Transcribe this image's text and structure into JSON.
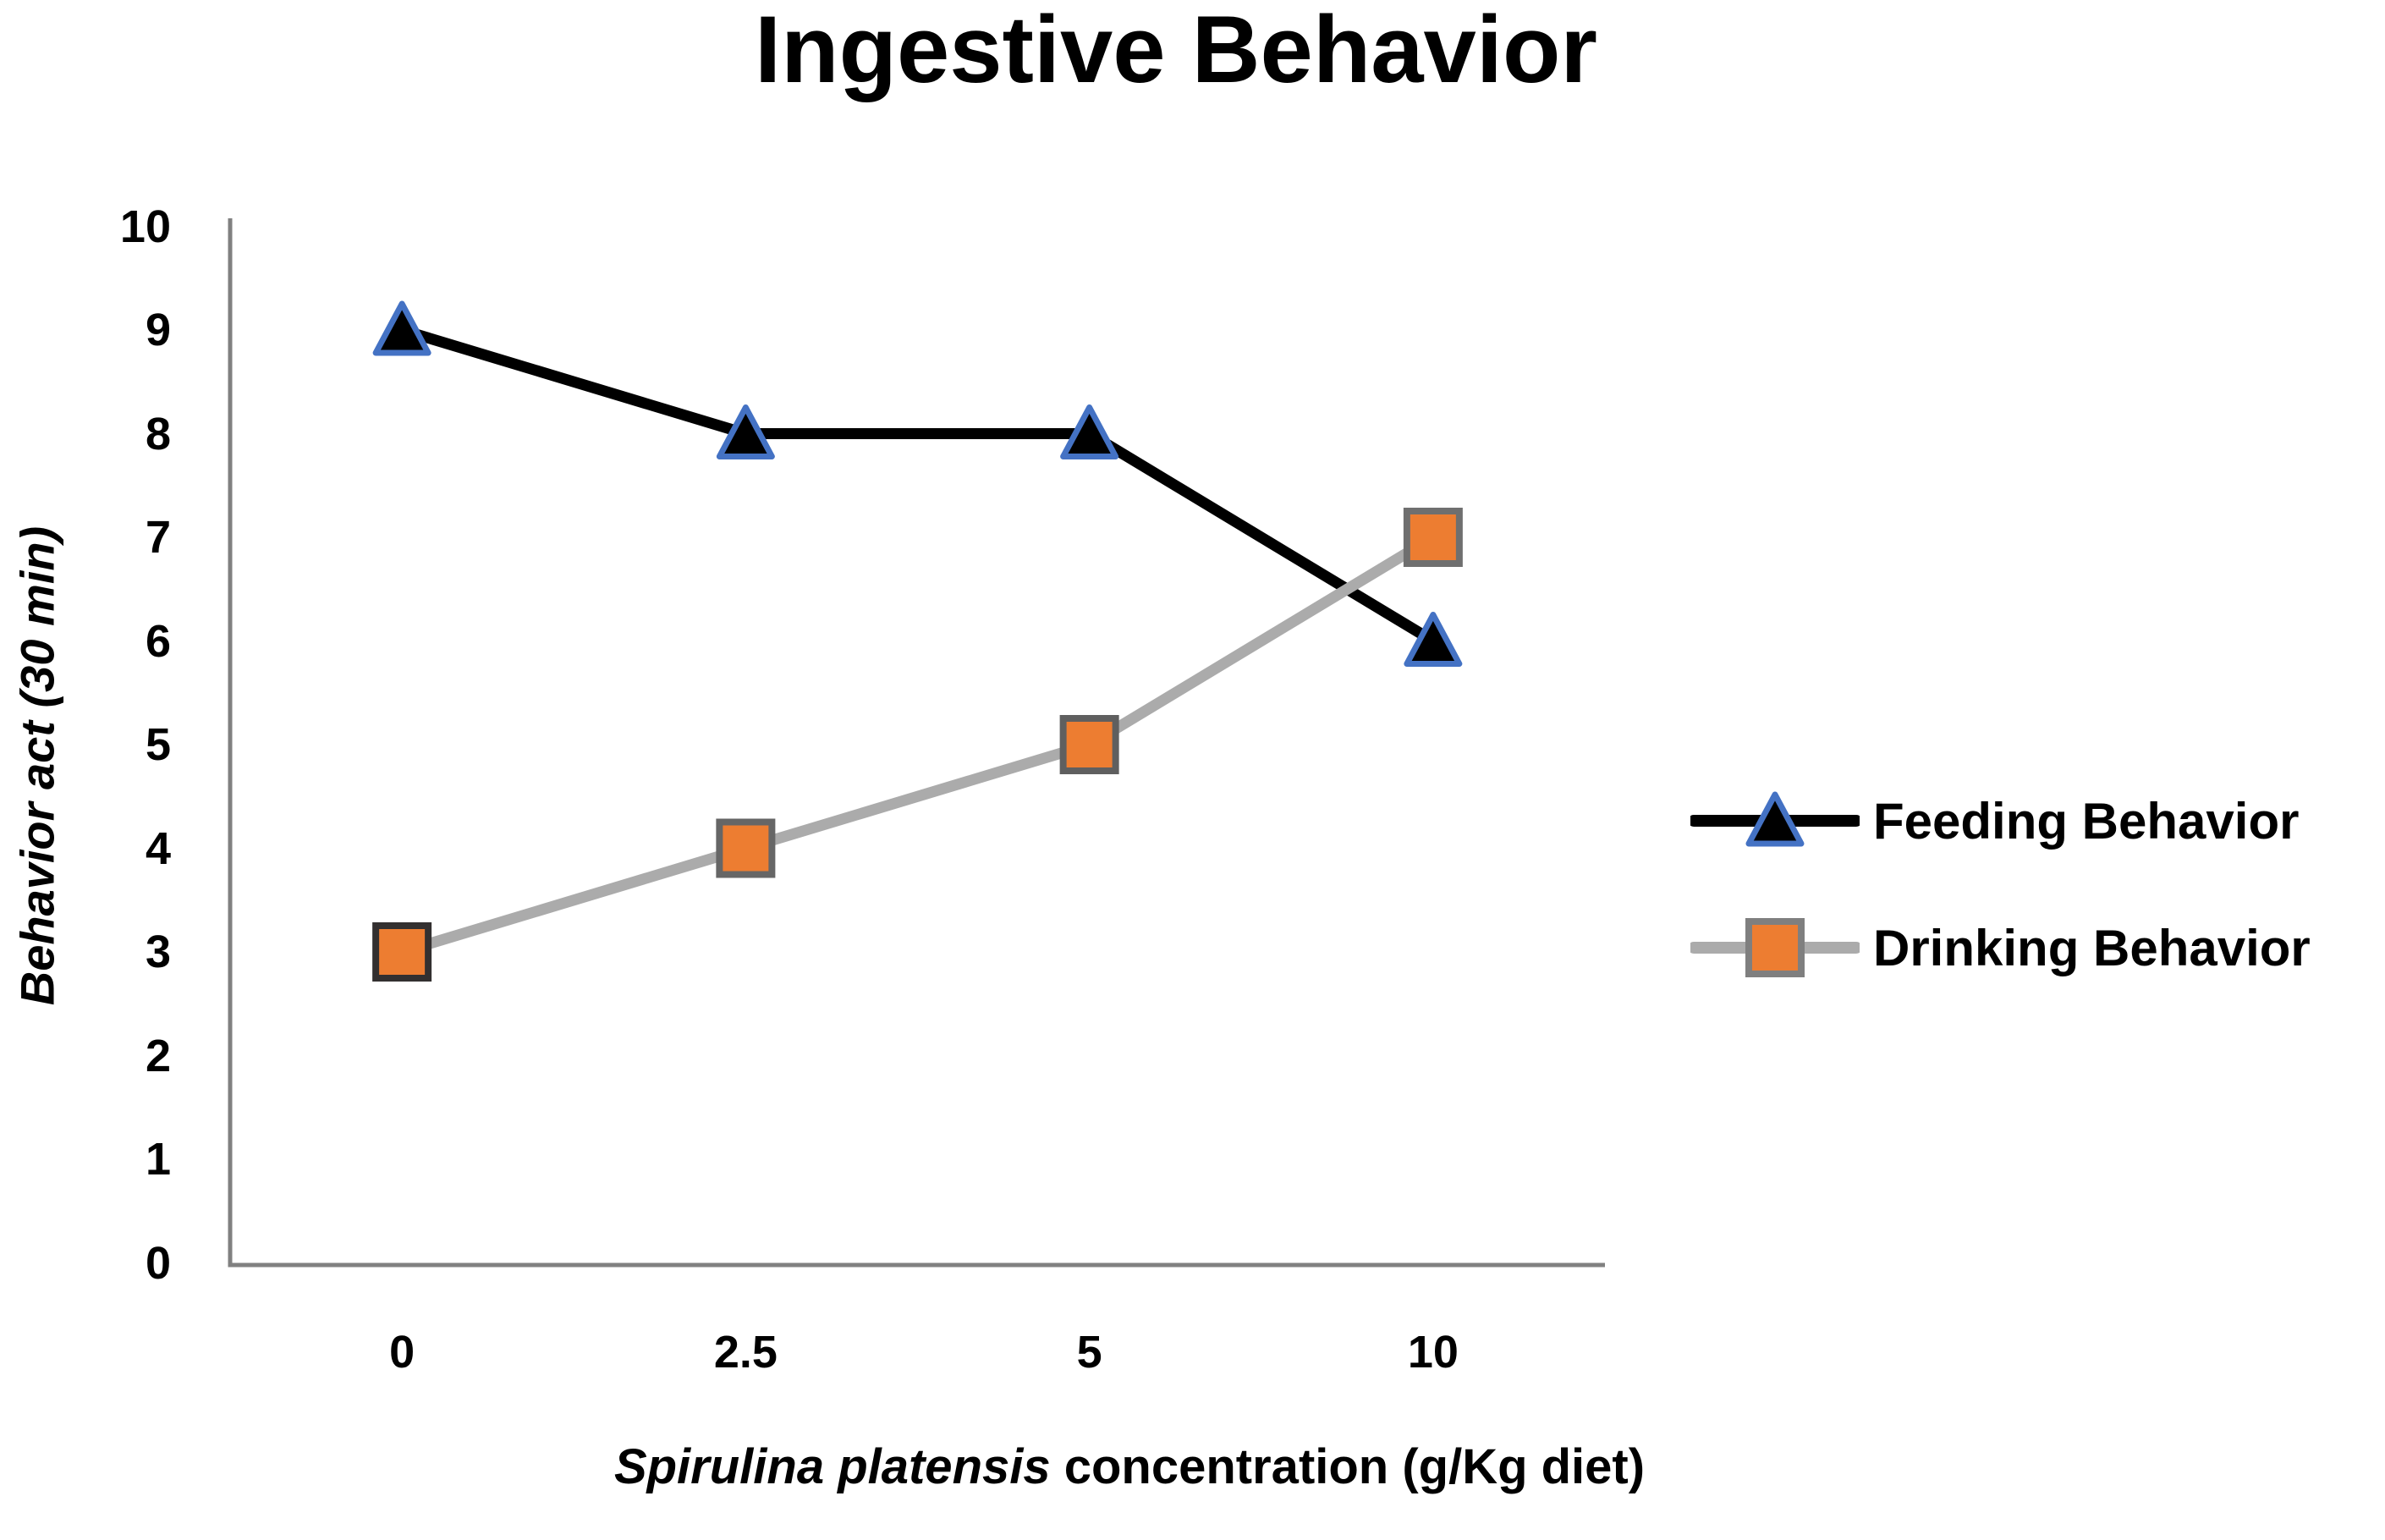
{
  "chart_data": {
    "type": "line",
    "title": "Ingestive Behavior",
    "ylabel": "Behavior act (30 min)",
    "xlabel_italic": "Spirulina platensis",
    "xlabel_rest": " concentration (g/Kg diet)",
    "x_values": [
      0,
      2.5,
      5,
      10
    ],
    "x_tick_labels": [
      "0",
      "2.5",
      "5",
      "10"
    ],
    "y_ticks": [
      "0",
      "1",
      "2",
      "3",
      "4",
      "5",
      "6",
      "7",
      "8",
      "9",
      "10"
    ],
    "ylim": [
      0,
      10
    ],
    "grid": false,
    "legend_position": "right",
    "axis_color": "#808080",
    "series": [
      {
        "name": "Feeding Behavior",
        "values": [
          9,
          8,
          8,
          6
        ],
        "line_color": "#000000",
        "marker": "triangle",
        "marker_fill": "#000000",
        "marker_border_color": "#4472C4"
      },
      {
        "name": "Drinking Behavior",
        "values": [
          3,
          4,
          5,
          7
        ],
        "line_color": "#ABABAB",
        "marker": "square",
        "marker_fill": "#ED7D31",
        "marker_border_color": "#7F7F7F",
        "marker_border_colors": [
          "#333030",
          "#666666",
          "#5F5F5F",
          "#6F6F6F"
        ]
      }
    ]
  }
}
